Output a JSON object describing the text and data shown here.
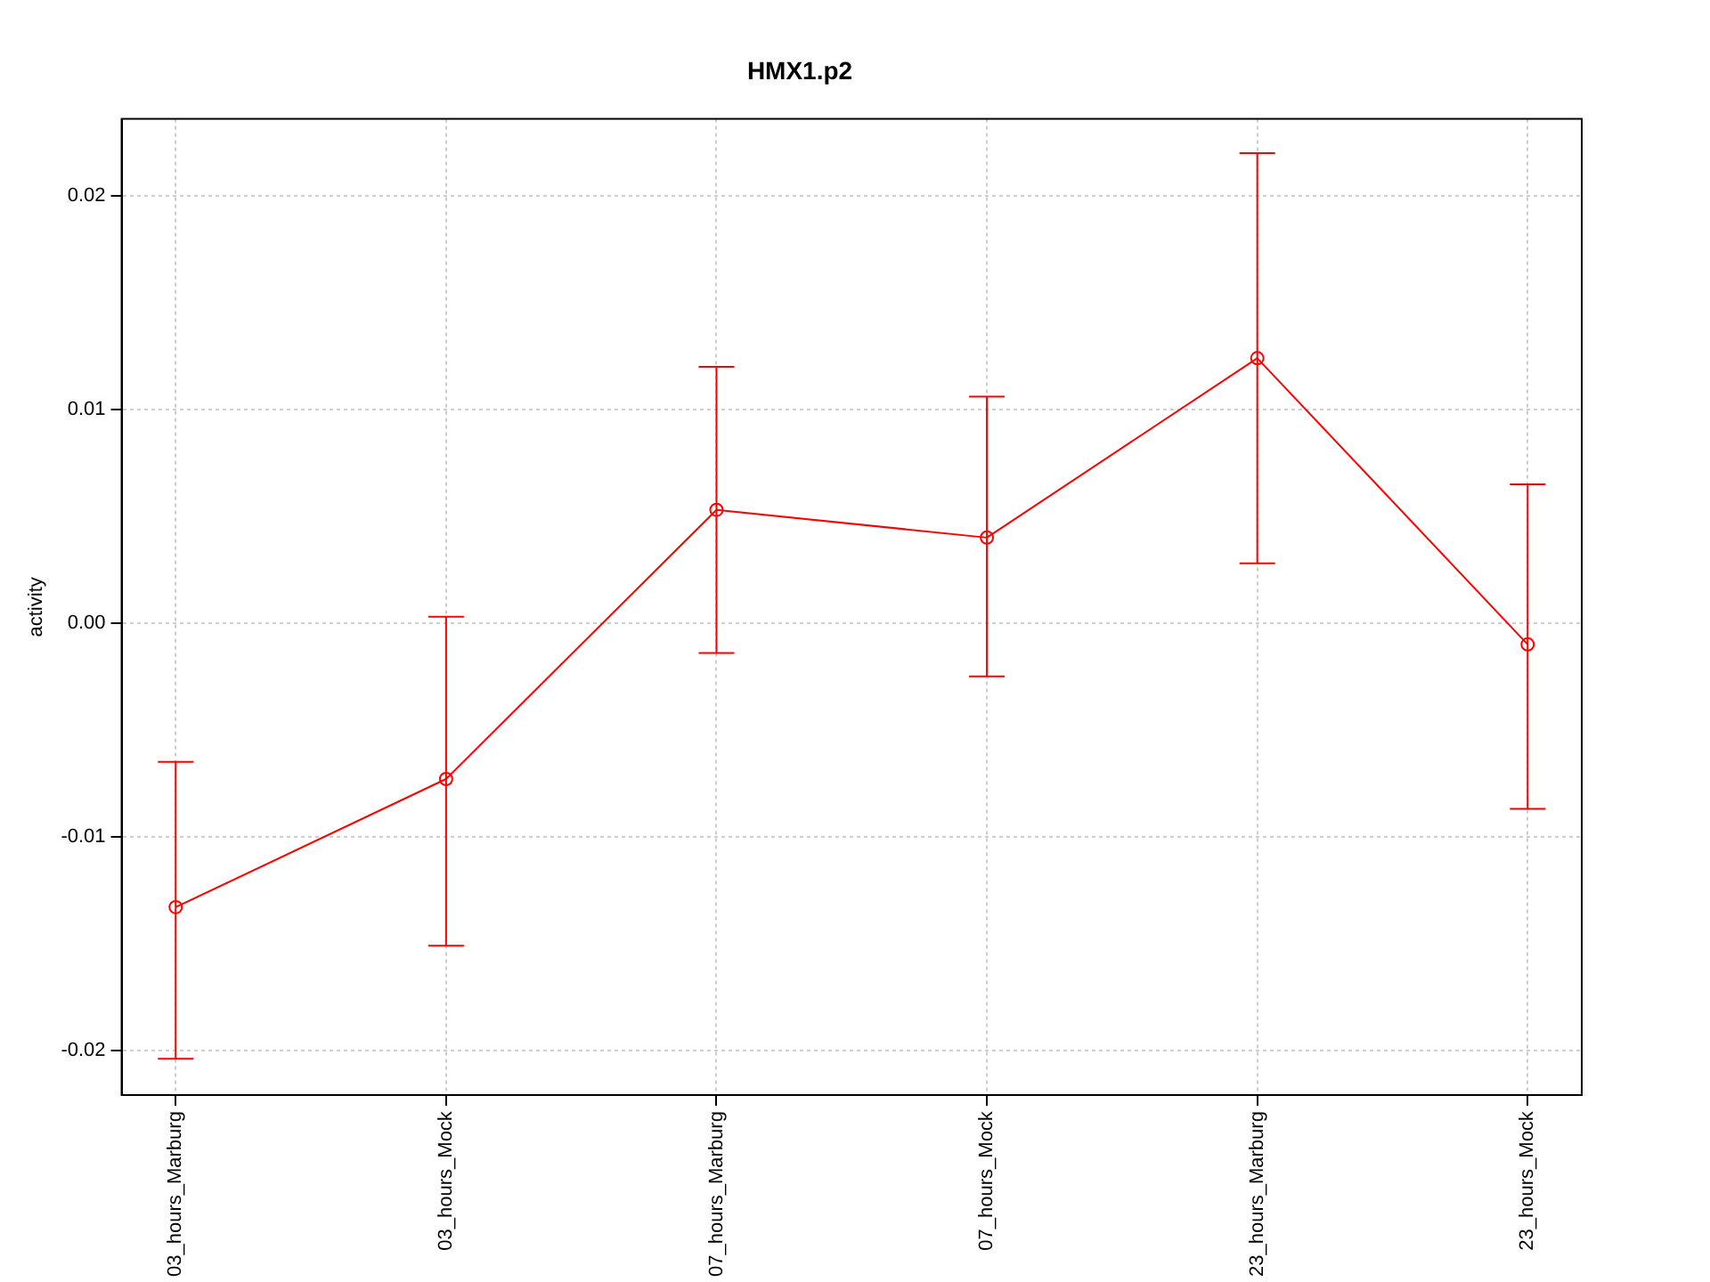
{
  "chart_data": {
    "type": "line",
    "title": "HMX1.p2",
    "ylabel": "activity",
    "categories": [
      "03_hours_Marburg",
      "03_hours_Mock",
      "07_hours_Marburg",
      "07_hours_Mock",
      "23_hours_Marburg",
      "23_hours_Mock"
    ],
    "series": [
      {
        "color": "#ff0000",
        "values": [
          -0.0133,
          -0.0073,
          0.0053,
          0.004,
          0.0124,
          -0.001
        ],
        "errors": [
          [
            -0.0204,
            -0.0065
          ],
          [
            -0.0151,
            0.0003
          ],
          [
            -0.0014,
            0.012
          ],
          [
            -0.0025,
            0.0106
          ],
          [
            0.0028,
            0.022
          ],
          [
            -0.0087,
            0.0065
          ]
        ]
      }
    ],
    "ylim": [
      -0.0221,
      0.0236
    ],
    "yticks": [
      -0.02,
      -0.01,
      {
        "value": 0,
        "label": "0.00"
      },
      0.01,
      0.02
    ],
    "grid": true,
    "legend": false,
    "marker": "circle",
    "line_style": "solid"
  }
}
